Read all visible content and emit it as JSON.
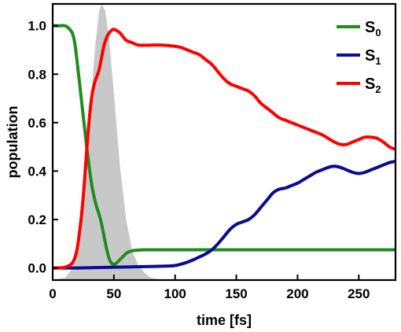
{
  "chart_data": {
    "type": "line",
    "xlabel": "time [fs]",
    "ylabel": "population",
    "xlim": [
      0,
      280
    ],
    "ylim": [
      -0.05,
      1.09
    ],
    "xticks": [
      0,
      50,
      100,
      150,
      200,
      250
    ],
    "yticks": [
      0.0,
      0.2,
      0.4,
      0.6,
      0.8,
      1.0
    ],
    "xtick_labels": [
      "0",
      "50",
      "100",
      "150",
      "200",
      "250"
    ],
    "ytick_labels": [
      "0.0",
      "0.2",
      "0.4",
      "0.6",
      "0.8",
      "1.0"
    ],
    "grid": false,
    "legend_position": "top-right",
    "pulse": {
      "color": "#c8c8c8",
      "x": [
        0,
        10,
        15,
        20,
        25,
        30,
        35,
        38,
        40,
        43,
        46,
        50,
        55,
        60,
        65,
        70,
        75,
        80,
        90,
        280
      ],
      "y": [
        -0.05,
        -0.04,
        -0.01,
        0.09,
        0.3,
        0.62,
        0.93,
        1.06,
        1.09,
        1.06,
        0.95,
        0.72,
        0.42,
        0.2,
        0.07,
        0.01,
        -0.02,
        -0.04,
        -0.05,
        -0.05
      ]
    },
    "series": [
      {
        "name": "S",
        "subscript": "0",
        "color": "#1e8c1e",
        "x": [
          0,
          5,
          10,
          13,
          16,
          18,
          20,
          22,
          24,
          26,
          28,
          30,
          32,
          34,
          36,
          38,
          40,
          42,
          44,
          46,
          48,
          50,
          52,
          54,
          56,
          58,
          60,
          63,
          66,
          70,
          75,
          80,
          90,
          100,
          150,
          200,
          250,
          280
        ],
        "y": [
          1.0,
          1.0,
          1.0,
          0.99,
          0.97,
          0.93,
          0.85,
          0.76,
          0.67,
          0.58,
          0.49,
          0.41,
          0.34,
          0.29,
          0.25,
          0.22,
          0.18,
          0.13,
          0.08,
          0.04,
          0.02,
          0.015,
          0.02,
          0.03,
          0.04,
          0.05,
          0.06,
          0.068,
          0.072,
          0.074,
          0.075,
          0.075,
          0.075,
          0.075,
          0.075,
          0.075,
          0.075,
          0.075
        ]
      },
      {
        "name": "S",
        "subscript": "1",
        "color": "#0a0a96",
        "x": [
          0,
          20,
          40,
          60,
          80,
          95,
          100,
          105,
          110,
          115,
          120,
          125,
          130,
          135,
          140,
          145,
          150,
          155,
          160,
          165,
          170,
          175,
          180,
          185,
          190,
          195,
          200,
          205,
          210,
          215,
          220,
          225,
          230,
          235,
          240,
          245,
          250,
          255,
          260,
          265,
          270,
          275,
          280
        ],
        "y": [
          0.0,
          0.0,
          0.002,
          0.004,
          0.006,
          0.008,
          0.01,
          0.016,
          0.024,
          0.034,
          0.046,
          0.058,
          0.075,
          0.1,
          0.13,
          0.16,
          0.18,
          0.19,
          0.2,
          0.22,
          0.25,
          0.28,
          0.31,
          0.325,
          0.33,
          0.34,
          0.35,
          0.365,
          0.38,
          0.395,
          0.405,
          0.415,
          0.42,
          0.415,
          0.405,
          0.395,
          0.39,
          0.395,
          0.405,
          0.415,
          0.425,
          0.435,
          0.44
        ]
      },
      {
        "name": "S",
        "subscript": "2",
        "color": "#ff0000",
        "x": [
          0,
          5,
          10,
          15,
          18,
          20,
          22,
          24,
          26,
          28,
          30,
          32,
          34,
          36,
          38,
          40,
          42,
          44,
          46,
          48,
          50,
          55,
          60,
          65,
          70,
          80,
          90,
          100,
          105,
          110,
          115,
          120,
          125,
          130,
          135,
          140,
          145,
          150,
          155,
          160,
          165,
          170,
          175,
          180,
          185,
          190,
          195,
          200,
          210,
          220,
          225,
          230,
          235,
          240,
          245,
          250,
          255,
          260,
          265,
          270,
          275,
          280
        ],
        "y": [
          0.0,
          0.0,
          0.003,
          0.015,
          0.04,
          0.08,
          0.15,
          0.24,
          0.36,
          0.5,
          0.62,
          0.71,
          0.76,
          0.79,
          0.82,
          0.87,
          0.92,
          0.95,
          0.97,
          0.98,
          0.985,
          0.97,
          0.94,
          0.93,
          0.92,
          0.92,
          0.92,
          0.915,
          0.91,
          0.9,
          0.89,
          0.88,
          0.86,
          0.84,
          0.81,
          0.78,
          0.76,
          0.75,
          0.74,
          0.73,
          0.71,
          0.68,
          0.66,
          0.64,
          0.62,
          0.61,
          0.6,
          0.59,
          0.57,
          0.55,
          0.535,
          0.52,
          0.51,
          0.51,
          0.52,
          0.53,
          0.54,
          0.54,
          0.535,
          0.52,
          0.5,
          0.49
        ]
      }
    ]
  }
}
